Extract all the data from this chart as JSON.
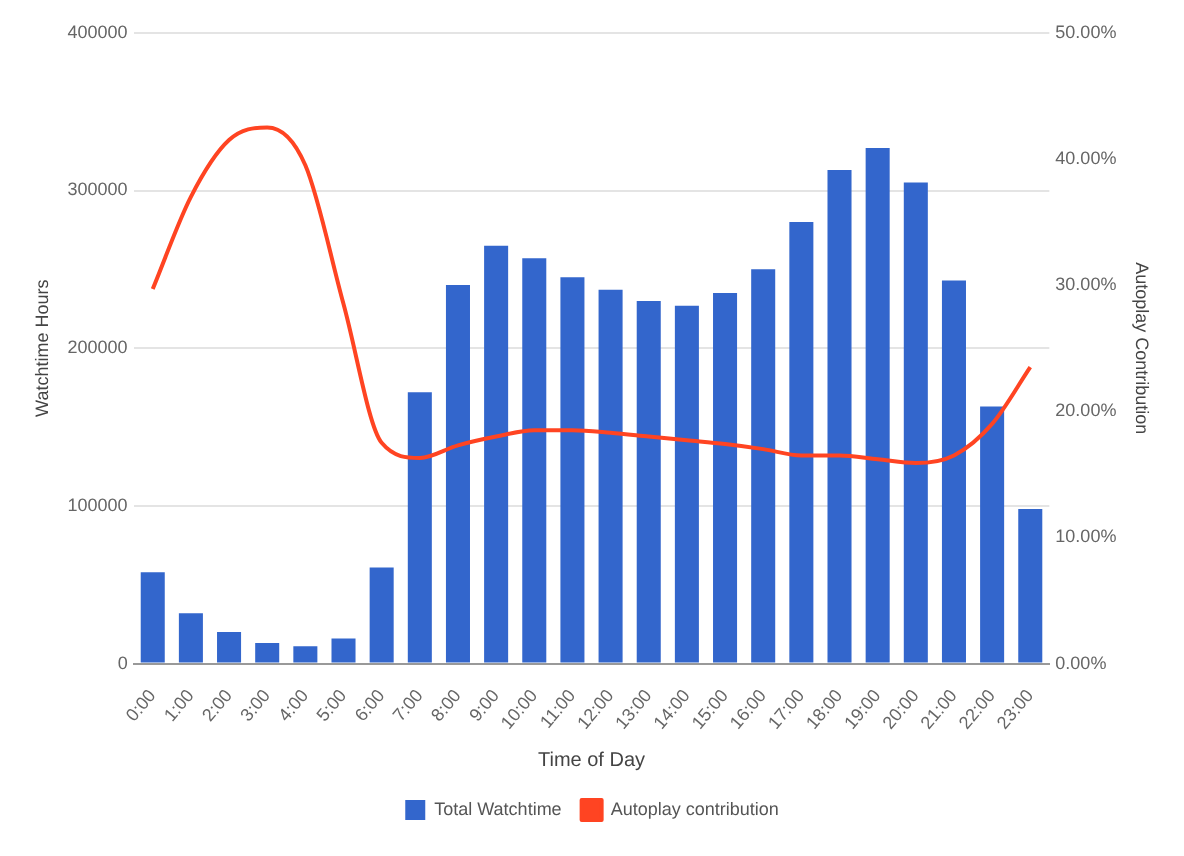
{
  "chart_data": {
    "type": "bar",
    "xlabel": "Time of Day",
    "ylabel": "Watchtime Hours",
    "y2label": "Autoplay Contribution",
    "categories": [
      "0:00",
      "1:00",
      "2:00",
      "3:00",
      "4:00",
      "5:00",
      "6:00",
      "7:00",
      "8:00",
      "9:00",
      "10:00",
      "11:00",
      "12:00",
      "13:00",
      "14:00",
      "15:00",
      "16:00",
      "17:00",
      "18:00",
      "19:00",
      "20:00",
      "21:00",
      "22:00",
      "23:00"
    ],
    "series": [
      {
        "name": "Total Watchtime",
        "color": "#3366cc",
        "values": [
          58000,
          32000,
          20000,
          13000,
          11000,
          16000,
          61000,
          172000,
          240000,
          265000,
          257000,
          245000,
          237000,
          230000,
          227000,
          235000,
          250000,
          280000,
          313000,
          327000,
          305000,
          243000,
          163000,
          98000
        ]
      },
      {
        "name": "Autoplay contribution",
        "type": "line",
        "axis": "y2",
        "color": "#ff4422",
        "values": [
          29.7,
          37,
          41.5,
          42.5,
          39.5,
          28.5,
          17.5,
          16.3,
          17.3,
          18,
          18.5,
          18.5,
          18.3,
          18,
          17.7,
          17.4,
          17,
          16.5,
          16.5,
          16.2,
          15.9,
          16.5,
          19,
          23.5
        ]
      }
    ],
    "ylim": [
      0,
      400000
    ],
    "yticks": [
      0,
      100000,
      200000,
      300000,
      400000
    ],
    "y2lim": [
      0,
      50
    ],
    "y2ticks": [
      {
        "value": 0,
        "label": "0.00%"
      },
      {
        "value": 10,
        "label": "10.00%"
      },
      {
        "value": 20,
        "label": "20.00%"
      },
      {
        "value": 30,
        "label": "30.00%"
      },
      {
        "value": 40,
        "label": "40.00%"
      },
      {
        "value": 50,
        "label": "50.00%"
      }
    ],
    "grid": "y",
    "legend": "bottom",
    "marker": "none",
    "line_style": "solid"
  }
}
